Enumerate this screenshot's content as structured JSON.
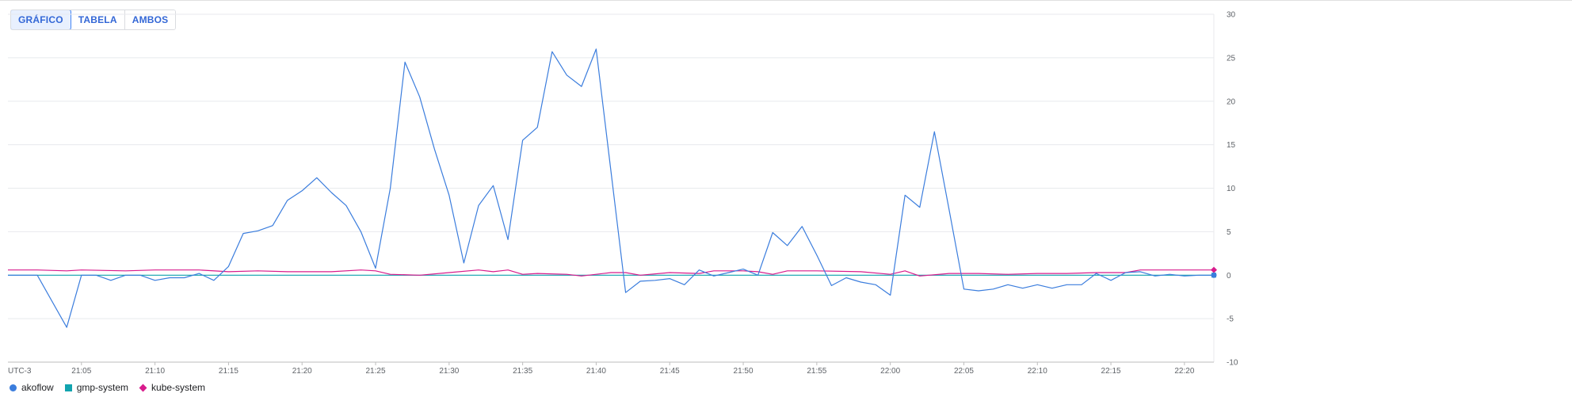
{
  "toggle": {
    "buttons": [
      {
        "label": "GRÁFICO",
        "active": true
      },
      {
        "label": "TABELA",
        "active": false
      },
      {
        "label": "AMBOS",
        "active": false
      }
    ]
  },
  "colors": {
    "akoflow": "#3b7ddd",
    "gmp-system": "#12a4af",
    "kube-system": "#d81b8c",
    "gridline": "#e8eaed",
    "axis": "#bdbdbd",
    "tick_text": "#5f6368"
  },
  "chart_data": {
    "type": "line",
    "timezone_label": "UTC-3",
    "x_unit": "minutes (HH:MM)",
    "x_range": [
      "21:00",
      "22:22"
    ],
    "x_ticks": [
      "21:05",
      "21:10",
      "21:15",
      "21:20",
      "21:25",
      "21:30",
      "21:35",
      "21:40",
      "21:45",
      "21:50",
      "21:55",
      "22:00",
      "22:05",
      "22:10",
      "22:15",
      "22:20"
    ],
    "ylim": [
      -10,
      30
    ],
    "y_ticks": [
      -10,
      -5,
      0,
      5,
      10,
      15,
      20,
      25,
      30
    ],
    "y_axis_position": "right",
    "grid": true,
    "legend_position": "bottom-left",
    "series": [
      {
        "name": "akoflow",
        "marker": "circle",
        "points": [
          [
            "21:00",
            0
          ],
          [
            "21:02",
            0
          ],
          [
            "21:04",
            -6
          ],
          [
            "21:05",
            0
          ],
          [
            "21:06",
            0
          ],
          [
            "21:07",
            -0.6
          ],
          [
            "21:08",
            0
          ],
          [
            "21:09",
            0
          ],
          [
            "21:10",
            -0.6
          ],
          [
            "21:11",
            -0.3
          ],
          [
            "21:12",
            -0.3
          ],
          [
            "21:13",
            0.2
          ],
          [
            "21:14",
            -0.6
          ],
          [
            "21:15",
            1
          ],
          [
            "21:16",
            4.8
          ],
          [
            "21:17",
            5.1
          ],
          [
            "21:18",
            5.7
          ],
          [
            "21:19",
            8.6
          ],
          [
            "21:20",
            9.7
          ],
          [
            "21:21",
            11.2
          ],
          [
            "21:22",
            9.5
          ],
          [
            "21:23",
            8
          ],
          [
            "21:24",
            5
          ],
          [
            "21:25",
            0.8
          ],
          [
            "21:26",
            10
          ],
          [
            "21:27",
            24.5
          ],
          [
            "21:28",
            20.5
          ],
          [
            "21:29",
            14.5
          ],
          [
            "21:30",
            9.2
          ],
          [
            "21:31",
            1.4
          ],
          [
            "21:32",
            8
          ],
          [
            "21:33",
            10.3
          ],
          [
            "21:34",
            4.1
          ],
          [
            "21:35",
            15.5
          ],
          [
            "21:36",
            17
          ],
          [
            "21:37",
            25.7
          ],
          [
            "21:38",
            23
          ],
          [
            "21:39",
            21.7
          ],
          [
            "21:40",
            26
          ],
          [
            "21:41",
            12
          ],
          [
            "21:42",
            -2
          ],
          [
            "21:43",
            -0.7
          ],
          [
            "21:44",
            -0.6
          ],
          [
            "21:45",
            -0.4
          ],
          [
            "21:46",
            -1.1
          ],
          [
            "21:47",
            0.6
          ],
          [
            "21:48",
            -0.1
          ],
          [
            "21:49",
            0.3
          ],
          [
            "21:50",
            0.7
          ],
          [
            "21:51",
            0
          ],
          [
            "21:52",
            4.9
          ],
          [
            "21:53",
            3.4
          ],
          [
            "21:54",
            5.6
          ],
          [
            "21:55",
            2.3
          ],
          [
            "21:56",
            -1.2
          ],
          [
            "21:57",
            -0.3
          ],
          [
            "21:58",
            -0.8
          ],
          [
            "21:59",
            -1.1
          ],
          [
            "22:00",
            -2.3
          ],
          [
            "22:01",
            9.2
          ],
          [
            "22:02",
            7.8
          ],
          [
            "22:03",
            16.5
          ],
          [
            "22:04",
            7.5
          ],
          [
            "22:05",
            -1.6
          ],
          [
            "22:06",
            -1.8
          ],
          [
            "22:07",
            -1.6
          ],
          [
            "22:08",
            -1.1
          ],
          [
            "22:09",
            -1.5
          ],
          [
            "22:10",
            -1.1
          ],
          [
            "22:11",
            -1.5
          ],
          [
            "22:12",
            -1.1
          ],
          [
            "22:13",
            -1.1
          ],
          [
            "22:14",
            0.2
          ],
          [
            "22:15",
            -0.6
          ],
          [
            "22:16",
            0.3
          ],
          [
            "22:17",
            0.4
          ],
          [
            "22:18",
            -0.1
          ],
          [
            "22:19",
            0.1
          ],
          [
            "22:20",
            -0.1
          ],
          [
            "22:21",
            0
          ],
          [
            "22:22",
            0
          ]
        ]
      },
      {
        "name": "gmp-system",
        "marker": "square",
        "points": [
          [
            "21:00",
            0
          ],
          [
            "21:10",
            0
          ],
          [
            "21:20",
            0
          ],
          [
            "21:30",
            0
          ],
          [
            "21:40",
            0
          ],
          [
            "21:50",
            0
          ],
          [
            "22:00",
            0
          ],
          [
            "22:10",
            0
          ],
          [
            "22:22",
            0
          ]
        ]
      },
      {
        "name": "kube-system",
        "marker": "diamond",
        "points": [
          [
            "21:00",
            0.6
          ],
          [
            "21:02",
            0.6
          ],
          [
            "21:04",
            0.5
          ],
          [
            "21:05",
            0.6
          ],
          [
            "21:08",
            0.5
          ],
          [
            "21:10",
            0.6
          ],
          [
            "21:13",
            0.6
          ],
          [
            "21:15",
            0.4
          ],
          [
            "21:17",
            0.5
          ],
          [
            "21:19",
            0.4
          ],
          [
            "21:22",
            0.4
          ],
          [
            "21:24",
            0.6
          ],
          [
            "21:25",
            0.5
          ],
          [
            "21:26",
            0.1
          ],
          [
            "21:28",
            0
          ],
          [
            "21:30",
            0.3
          ],
          [
            "21:32",
            0.6
          ],
          [
            "21:33",
            0.4
          ],
          [
            "21:34",
            0.6
          ],
          [
            "21:35",
            0.1
          ],
          [
            "21:36",
            0.2
          ],
          [
            "21:38",
            0.1
          ],
          [
            "21:39",
            -0.1
          ],
          [
            "21:41",
            0.3
          ],
          [
            "21:42",
            0.3
          ],
          [
            "21:43",
            0
          ],
          [
            "21:45",
            0.3
          ],
          [
            "21:47",
            0.2
          ],
          [
            "21:48",
            0.5
          ],
          [
            "21:50",
            0.5
          ],
          [
            "21:51",
            0.4
          ],
          [
            "21:52",
            0.1
          ],
          [
            "21:53",
            0.5
          ],
          [
            "21:55",
            0.5
          ],
          [
            "21:58",
            0.4
          ],
          [
            "22:00",
            0.1
          ],
          [
            "22:01",
            0.5
          ],
          [
            "22:02",
            -0.1
          ],
          [
            "22:04",
            0.2
          ],
          [
            "22:06",
            0.2
          ],
          [
            "22:08",
            0.1
          ],
          [
            "22:10",
            0.2
          ],
          [
            "22:12",
            0.2
          ],
          [
            "22:14",
            0.3
          ],
          [
            "22:16",
            0.3
          ],
          [
            "22:17",
            0.6
          ],
          [
            "22:19",
            0.6
          ],
          [
            "22:22",
            0.6
          ]
        ]
      }
    ]
  }
}
